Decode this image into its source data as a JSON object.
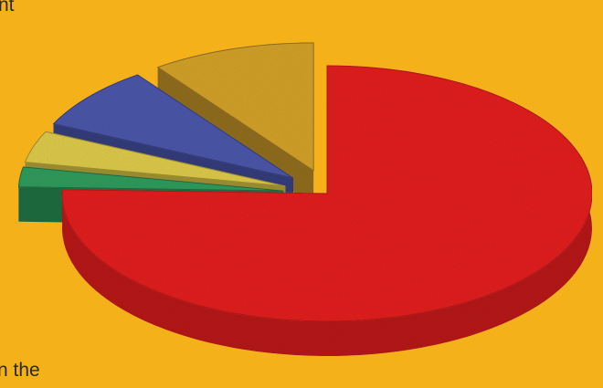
{
  "text_fragments": {
    "top_left": "nt",
    "bottom_left": "n the"
  },
  "chart_data": {
    "type": "pie",
    "style": "3d-exploded",
    "title": "",
    "slices": [
      {
        "value": 75.5,
        "color": "#e0201e",
        "side": "#b51415",
        "exploded": false
      },
      {
        "value": 2.5,
        "color": "#2f9a5c",
        "side": "#1f6b3f",
        "exploded": true
      },
      {
        "value": 4.0,
        "color": "#dcc84a",
        "side": "#9f9030",
        "exploded": true
      },
      {
        "value": 8.0,
        "color": "#4a56a8",
        "side": "#333c7a",
        "exploded": true
      },
      {
        "value": 10.0,
        "color": "#d1a028",
        "side": "#8f6c1c",
        "exploded": true
      }
    ]
  }
}
